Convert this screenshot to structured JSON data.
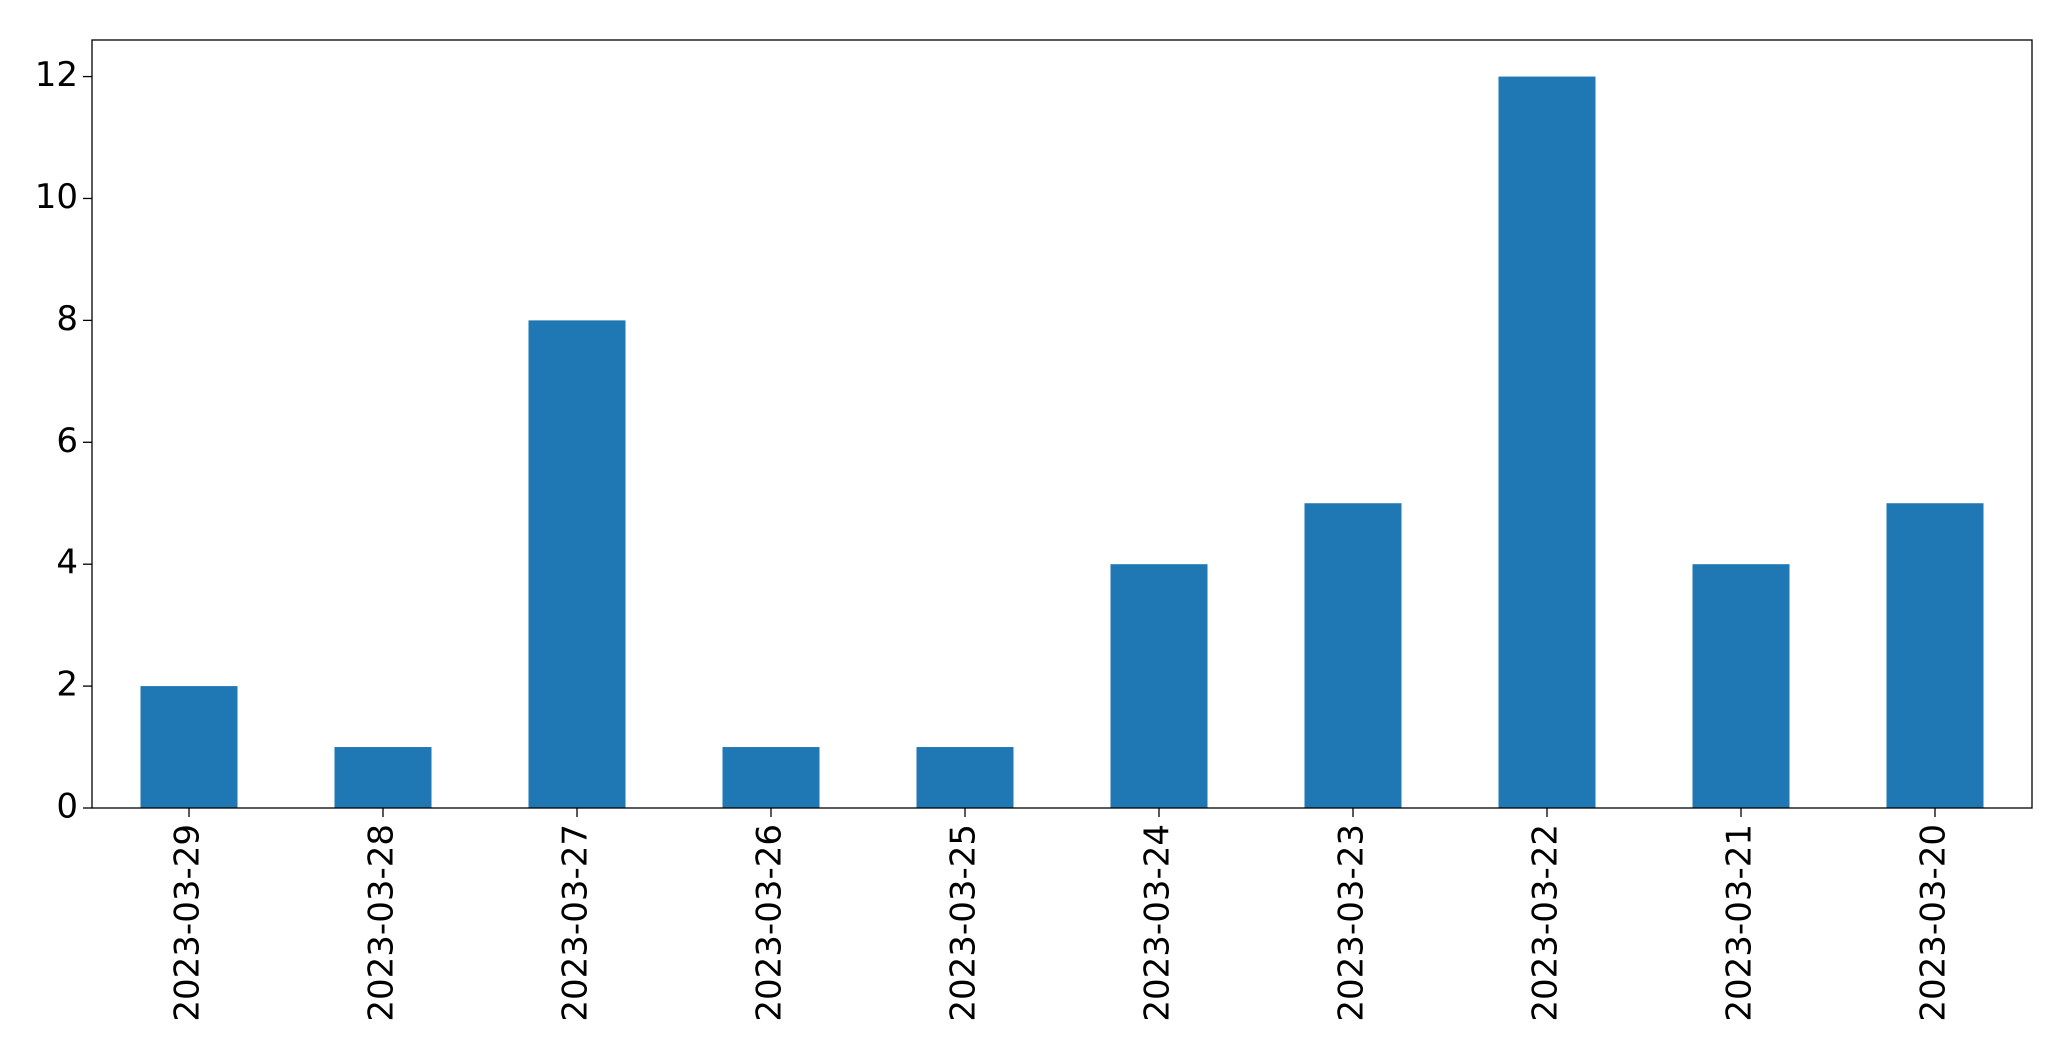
{
  "chart_data": {
    "type": "bar",
    "categories": [
      "2023-03-29",
      "2023-03-28",
      "2023-03-27",
      "2023-03-26",
      "2023-03-25",
      "2023-03-24",
      "2023-03-23",
      "2023-03-22",
      "2023-03-21",
      "2023-03-20"
    ],
    "values": [
      2,
      1,
      8,
      1,
      1,
      4,
      5,
      12,
      4,
      5
    ],
    "color": "#1f77b4",
    "ylim": [
      0,
      12.6
    ],
    "yticks": [
      0,
      2,
      4,
      6,
      8,
      10,
      12
    ],
    "grid": false
  }
}
